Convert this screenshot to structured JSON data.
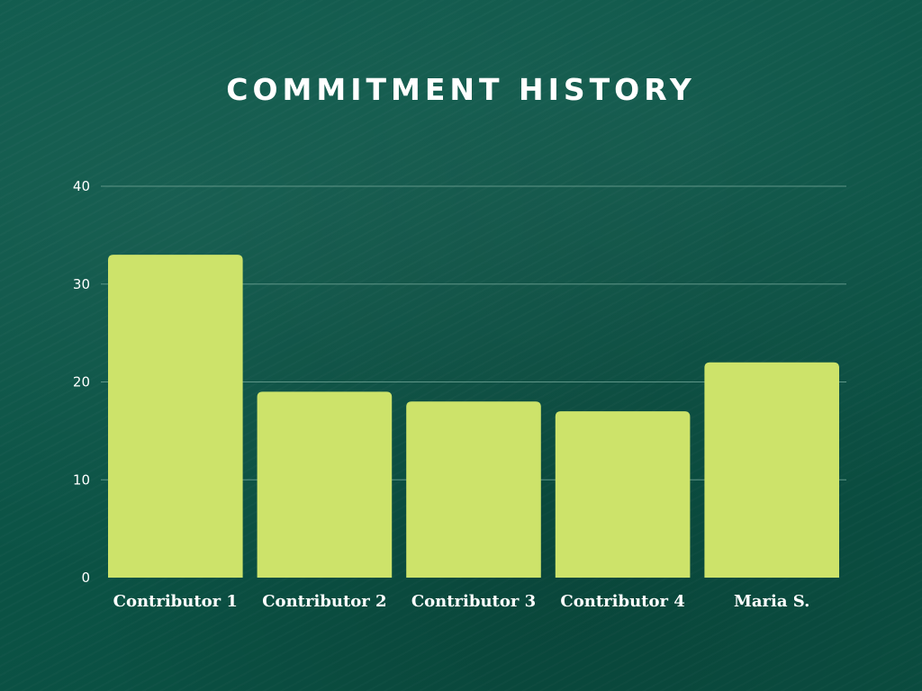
{
  "chart_data": {
    "type": "bar",
    "title": "COMMITMENT HISTORY",
    "xlabel": "",
    "ylabel": "",
    "categories": [
      "Contributor 1",
      "Contributor 2",
      "Contributor 3",
      "Contributor 4",
      "Maria S."
    ],
    "values": [
      33,
      19,
      18,
      17,
      22
    ],
    "ylim": [
      0,
      40
    ],
    "yticks": [
      "0",
      "10",
      "20",
      "30",
      "40"
    ],
    "grid": true,
    "legend": "none",
    "colors": {
      "background": "#0b5446",
      "bar": "#cde36a",
      "gridline": "#5f9688",
      "text": "#ffffff"
    }
  }
}
